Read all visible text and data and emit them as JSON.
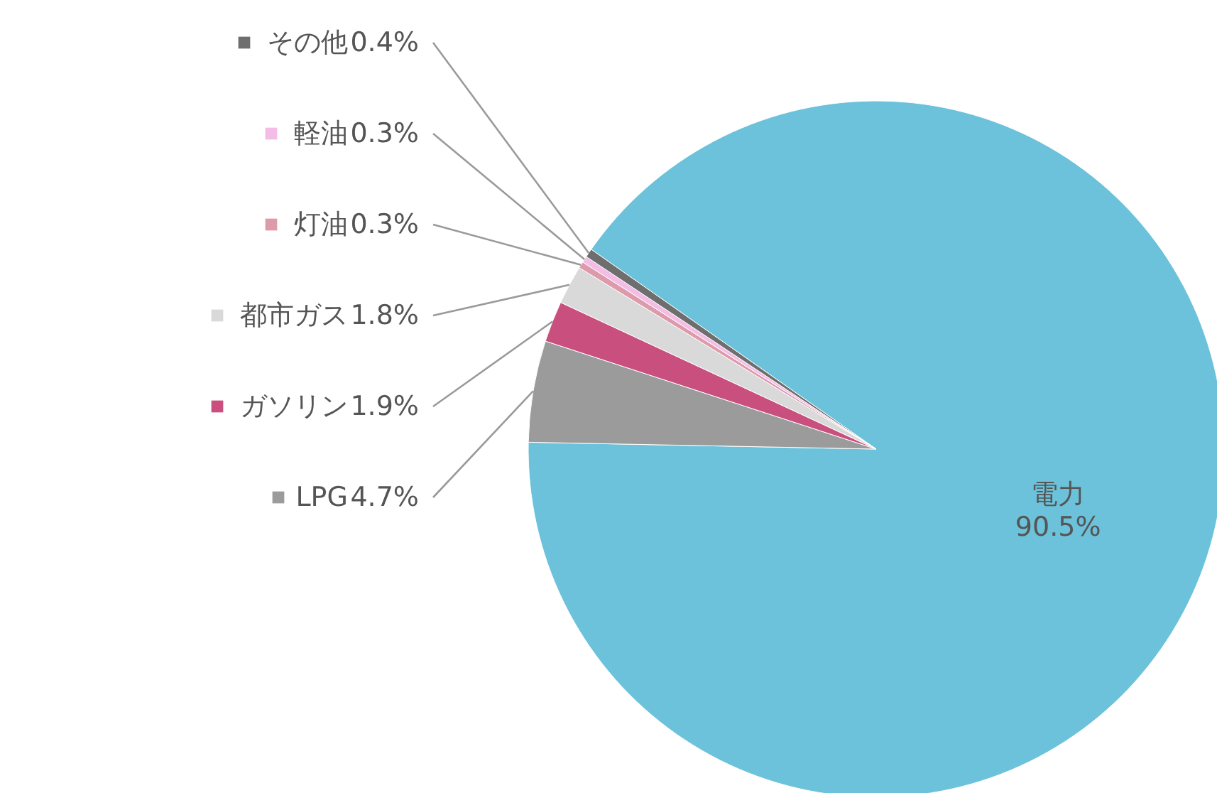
{
  "chart_data": {
    "type": "pie",
    "categories": [
      "電力",
      "LPG",
      "ガソリン",
      "都市ガス",
      "灯油",
      "軽油",
      "その他"
    ],
    "values": [
      90.5,
      4.7,
      1.9,
      1.8,
      0.3,
      0.3,
      0.4
    ],
    "colors": [
      "#6cc2da",
      "#9b9b9b",
      "#c9507e",
      "#d9d9d9",
      "#dd9aaa",
      "#f3bde6",
      "#6e6e6e"
    ],
    "value_labels": [
      "90.5%",
      "4.7%",
      "1.9%",
      "1.8%",
      "0.3%",
      "0.3%",
      "0.4%"
    ],
    "legend": "left"
  }
}
